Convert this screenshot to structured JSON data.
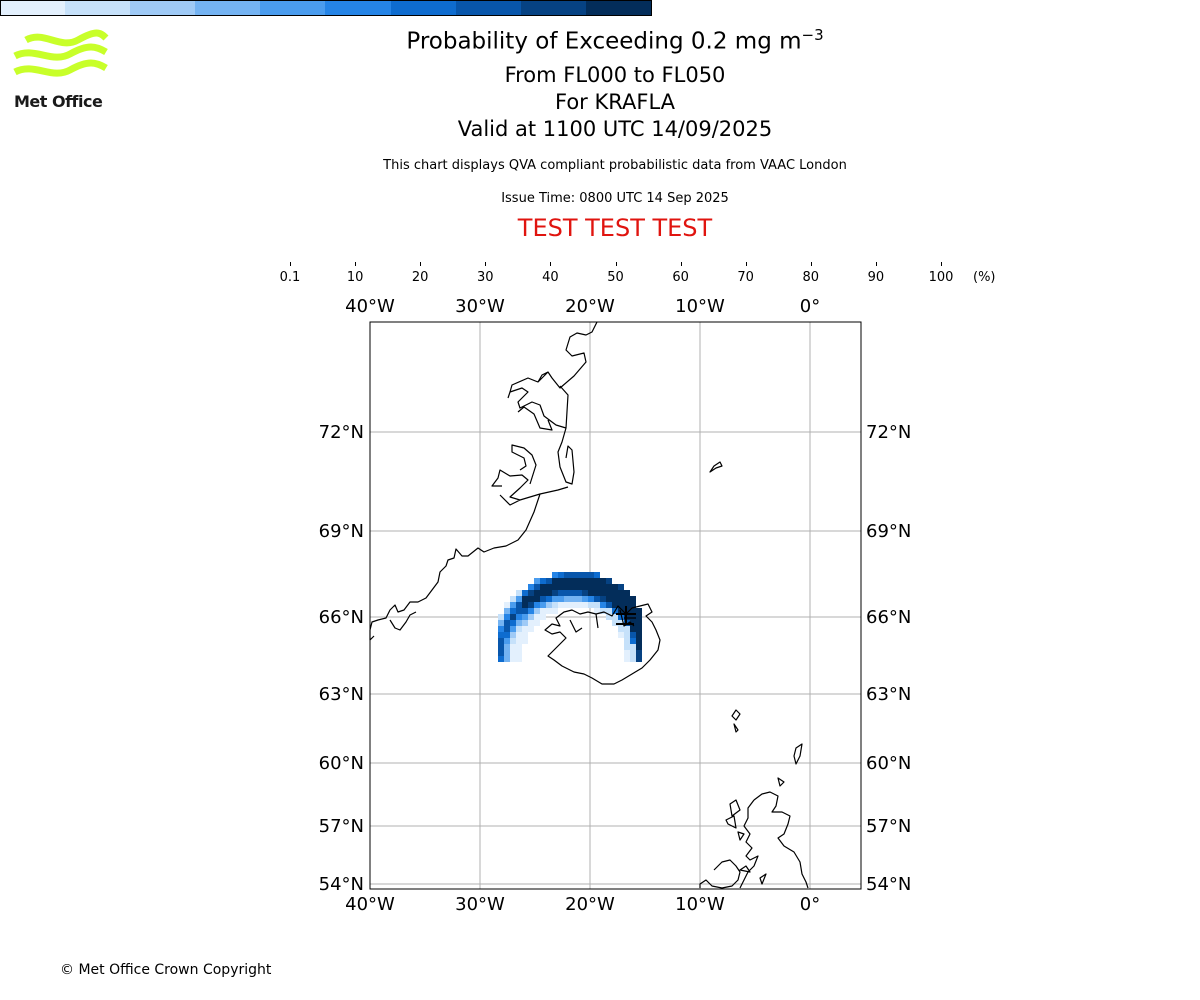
{
  "logo": {
    "text": "Met Office",
    "icon": "met-office-wave-logo",
    "color": "#c8ff2a"
  },
  "title": {
    "main": "Probability of Exceeding 0.2 mg m",
    "exponent": "−3"
  },
  "subtitles": [
    "From FL000 to FL050",
    "For KRAFLA",
    "Valid at 1100 UTC 14/09/2025"
  ],
  "disclaimer": "This chart displays QVA compliant probabilistic data from VAAC London",
  "issue_time": "Issue Time: 0800 UTC 14 Sep 2025",
  "test_banner": "TEST TEST TEST",
  "colorbar": {
    "unit": "(%)",
    "ticks": [
      "0.1",
      "10",
      "20",
      "30",
      "40",
      "50",
      "60",
      "70",
      "80",
      "90",
      "100"
    ],
    "colors": [
      "#e3f0fd",
      "#c6e1fa",
      "#9fcaf6",
      "#74b3f2",
      "#4a9cee",
      "#2584e6",
      "#0e6ccf",
      "#0856ab",
      "#064283",
      "#032d5a"
    ]
  },
  "map": {
    "lon_labels": [
      "40°W",
      "30°W",
      "20°W",
      "10°W",
      "0°"
    ],
    "lat_labels": [
      "72°N",
      "69°N",
      "66°N",
      "63°N",
      "60°N",
      "57°N",
      "54°N"
    ],
    "coastline_color": "#000000",
    "grid_color": "#b0b0b0"
  },
  "copyright": "© Met Office Crown Copyright"
}
